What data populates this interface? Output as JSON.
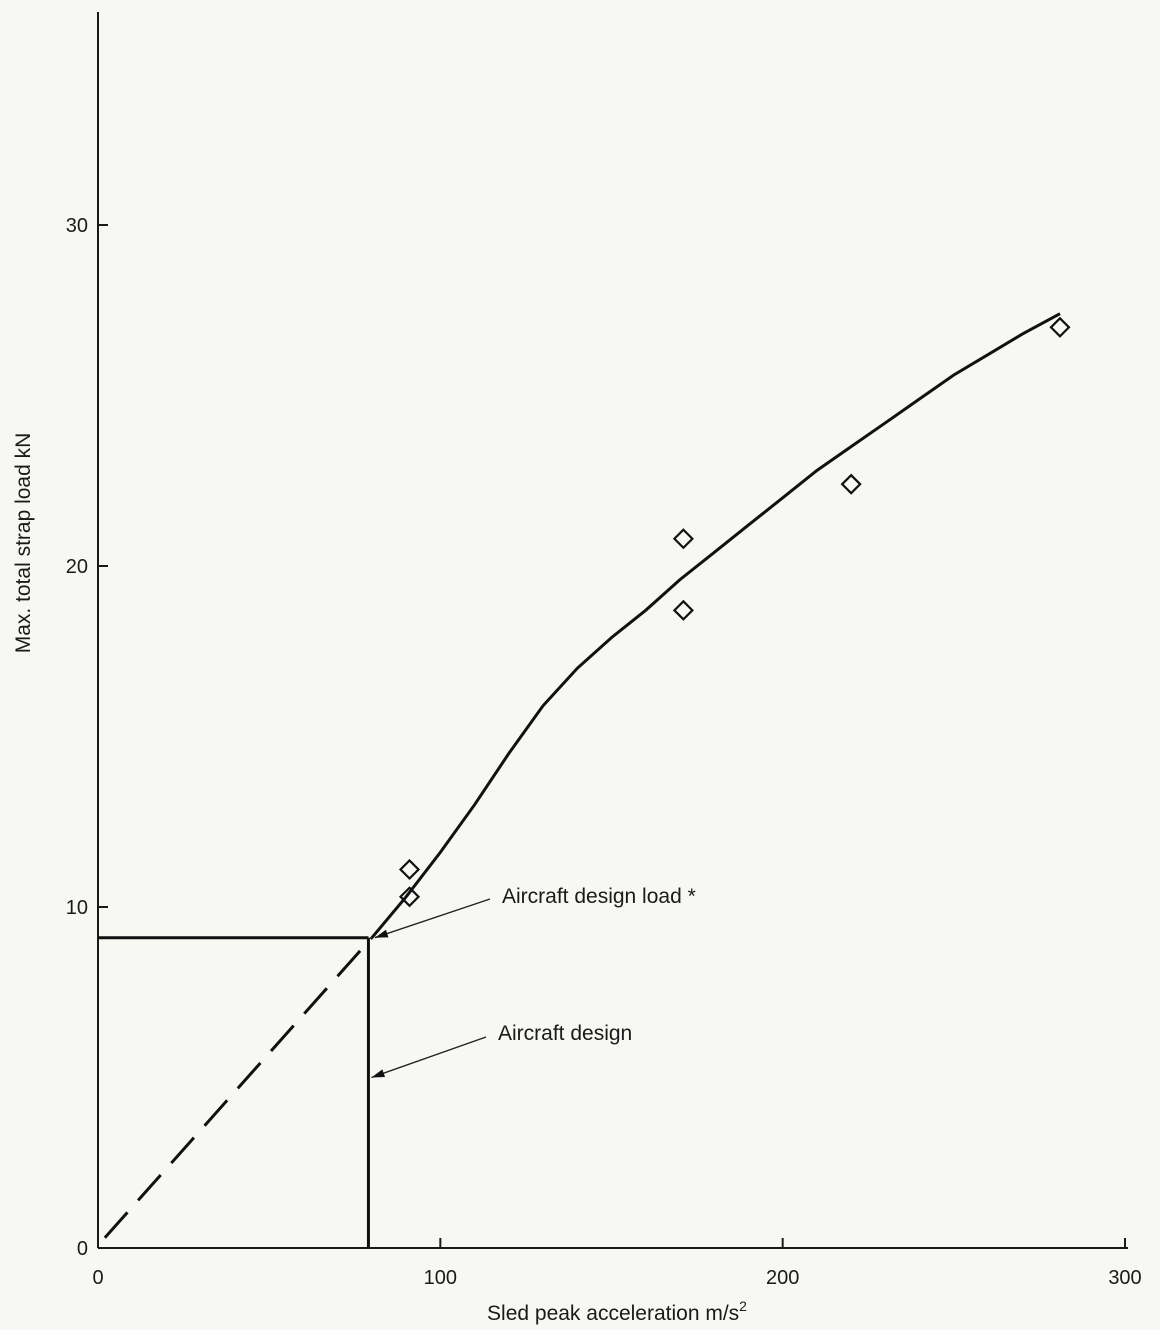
{
  "chart_data": {
    "type": "scatter",
    "xlabel": "Sled peak acceleration m/s",
    "xlabel_superscript": "2",
    "ylabel": "Max. total strap load kN",
    "xlim": [
      0,
      300
    ],
    "ylim": [
      0,
      36
    ],
    "grid": false,
    "x_ticks": [
      0,
      100,
      200,
      300
    ],
    "x_tick_labels": [
      "0",
      "100",
      "200",
      "300"
    ],
    "y_ticks": [
      0,
      10,
      20,
      30
    ],
    "y_tick_labels": [
      "0",
      "10",
      "20",
      "30"
    ],
    "points": [
      {
        "x": 91,
        "y": 11.1
      },
      {
        "x": 91,
        "y": 10.3
      },
      {
        "x": 171,
        "y": 20.8
      },
      {
        "x": 171,
        "y": 18.7
      },
      {
        "x": 220,
        "y": 22.4
      },
      {
        "x": 281,
        "y": 27.0
      }
    ],
    "fit_curve": [
      [
        80,
        9.1
      ],
      [
        90,
        10.3
      ],
      [
        100,
        11.6
      ],
      [
        110,
        13.0
      ],
      [
        120,
        14.5
      ],
      [
        130,
        15.9
      ],
      [
        140,
        17.0
      ],
      [
        150,
        17.9
      ],
      [
        160,
        18.7
      ],
      [
        170,
        19.6
      ],
      [
        180,
        20.4
      ],
      [
        190,
        21.2
      ],
      [
        200,
        22.0
      ],
      [
        210,
        22.8
      ],
      [
        220,
        23.5
      ],
      [
        230,
        24.2
      ],
      [
        240,
        24.9
      ],
      [
        250,
        25.6
      ],
      [
        260,
        26.2
      ],
      [
        270,
        26.8
      ],
      [
        281,
        27.4
      ]
    ],
    "extrapolation": [
      [
        2,
        0.3
      ],
      [
        80,
        9.1
      ]
    ],
    "reference_lines": {
      "design_acceleration": 79,
      "design_load": 9.1
    },
    "annotations": [
      {
        "text": "Aircraft design load *",
        "target": [
          80,
          9.1
        ]
      },
      {
        "text": "Aircraft design",
        "target": [
          79,
          5.0
        ]
      }
    ]
  }
}
